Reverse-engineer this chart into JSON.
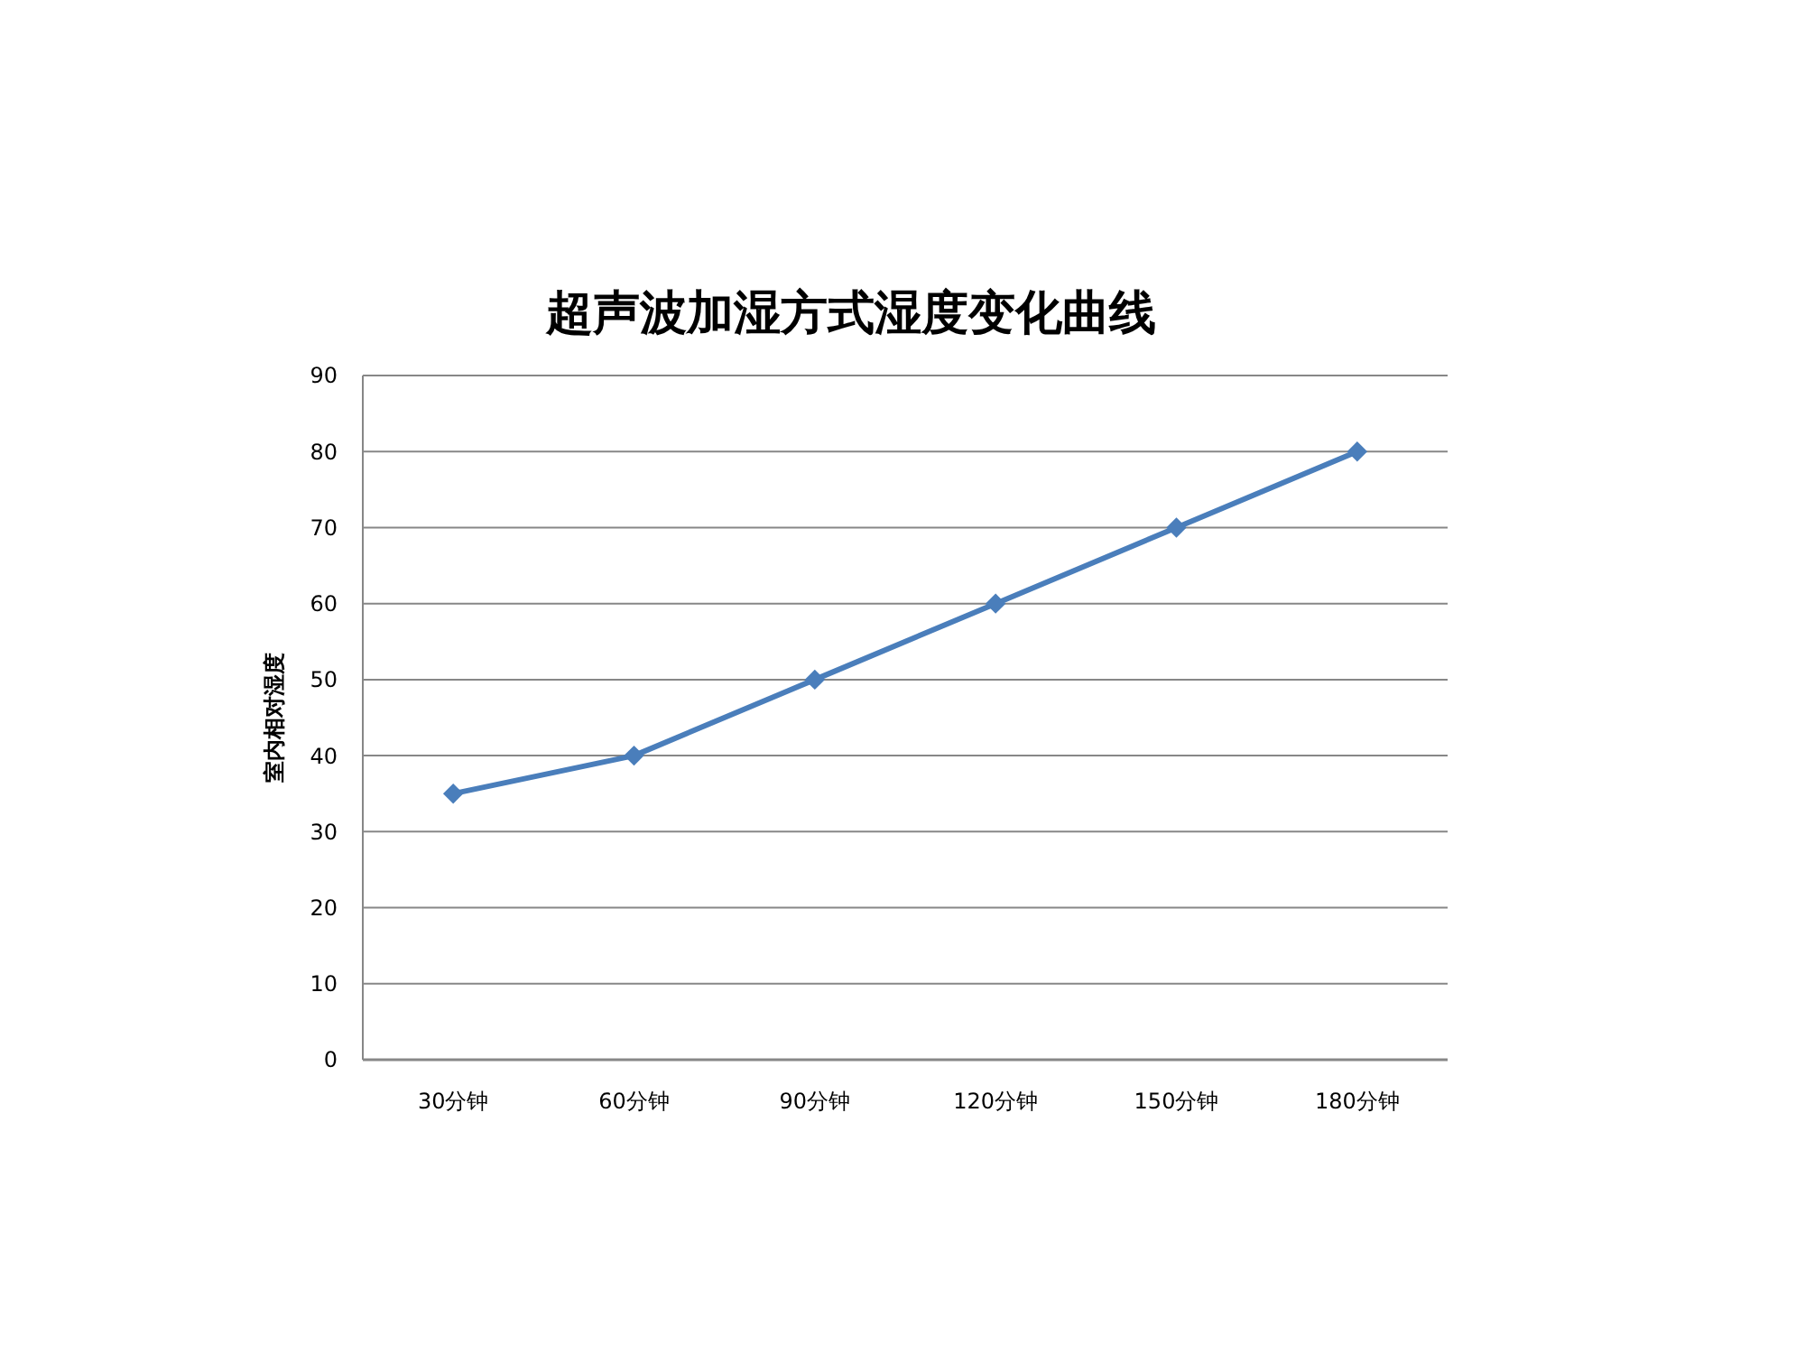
{
  "chart_data": {
    "type": "line",
    "title": "超声波加湿方式湿度变化曲线",
    "ylabel": "室内相对湿度",
    "categories": [
      "30分钟",
      "60分钟",
      "90分钟",
      "120分钟",
      "150分钟",
      "180分钟"
    ],
    "series": [
      {
        "color": "#4a7ebb",
        "values": [
          35,
          40,
          50,
          60,
          70,
          80
        ]
      }
    ],
    "ylim": [
      0,
      90
    ],
    "yticks": [
      0,
      10,
      20,
      30,
      40,
      50,
      60,
      70,
      80,
      90
    ],
    "grid": "y",
    "marker": "diamond",
    "line_style": "solid"
  }
}
